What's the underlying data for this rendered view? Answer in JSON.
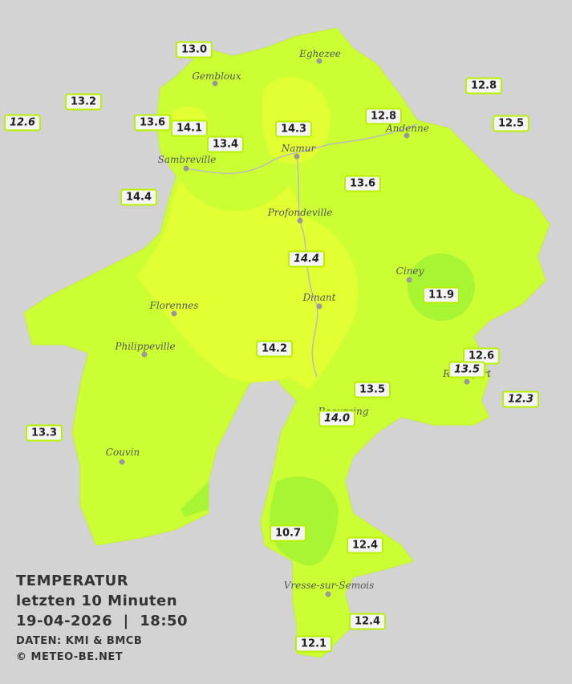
{
  "legend": {
    "title": "TEMPERATUR",
    "period": "letzten 10 Minuten",
    "datetime": "19-04-2026  |  18:50",
    "source": "DATEN: KMI & BMCB",
    "copyright": "© METEO-BE.NET"
  },
  "cities": [
    "Eghezee",
    "Gembloux",
    "Andenne",
    "Namur",
    "Sambreville",
    "Profondeville",
    "Ciney",
    "Dinant",
    "Florennes",
    "Philippeville",
    "Rochefort",
    "Beauraing",
    "Couvin",
    "Vresse-sur-Semois"
  ],
  "stations": [
    "13.0",
    "13.2",
    "12.6",
    "13.6",
    "14.1",
    "14.3",
    "13.4",
    "12.8",
    "12.8",
    "12.5",
    "14.4",
    "13.6",
    "14.4",
    "11.9",
    "14.2",
    "12.6",
    "13.5",
    "13.5",
    "12.3",
    "14.0",
    "13.3",
    "10.7",
    "12.4",
    "12.4",
    "12.1"
  ]
}
